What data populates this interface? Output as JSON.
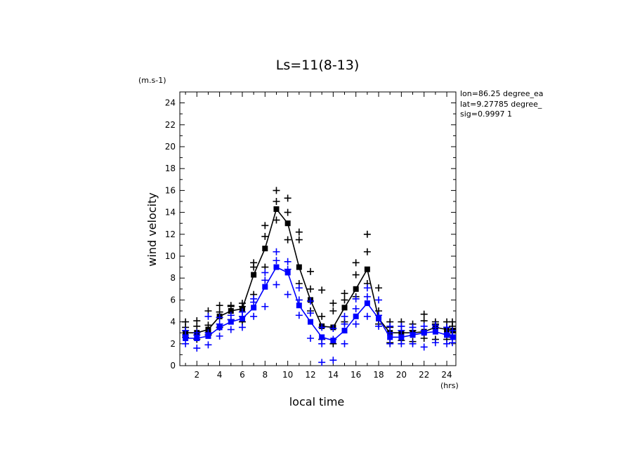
{
  "chart_data": {
    "type": "line",
    "title": "Ls=11(8-13)",
    "xlabel": "local time",
    "ylabel": "wind velocity",
    "y_unit": "(m.s-1)",
    "x_unit": "(hrs)",
    "annotations": [
      "lon=86.25 degree_ea",
      "lat=9.27785 degree_",
      "sig=0.9997 1"
    ],
    "xlim": [
      0.5,
      24.8
    ],
    "ylim": [
      0,
      25
    ],
    "x_ticks": [
      2,
      4,
      6,
      8,
      10,
      12,
      14,
      16,
      18,
      20,
      22,
      24
    ],
    "y_ticks": [
      0,
      2,
      4,
      6,
      8,
      10,
      12,
      14,
      16,
      18,
      20,
      22,
      24
    ],
    "grid": false,
    "x": [
      1,
      2,
      3,
      4,
      5,
      6,
      7,
      8,
      9,
      10,
      11,
      12,
      13,
      14,
      15,
      16,
      17,
      18,
      19,
      20,
      21,
      22,
      23,
      24,
      25
    ],
    "series": [
      {
        "color": "#000000",
        "mean": [
          3.0,
          3.0,
          3.3,
          4.5,
          5.0,
          5.2,
          8.3,
          10.7,
          14.3,
          13.0,
          9.0,
          6.0,
          3.6,
          3.5,
          5.3,
          7.0,
          8.8,
          4.3,
          3.0,
          3.0,
          3.0,
          3.1,
          3.5,
          3.3,
          3.2
        ],
        "samples": [
          [
            2.6,
            3.5,
            4.0
          ],
          [
            2.4,
            3.6,
            4.1
          ],
          [
            2.8,
            3.7,
            5.0
          ],
          [
            3.5,
            4.9,
            5.5
          ],
          [
            4.2,
            5.4,
            5.5
          ],
          [
            4.0,
            5.4,
            5.7
          ],
          [
            6.5,
            9.0,
            9.4
          ],
          [
            9.0,
            11.8,
            12.8
          ],
          [
            13.3,
            15.0,
            16.0
          ],
          [
            11.5,
            14.0,
            15.3
          ],
          [
            7.5,
            11.5,
            12.2
          ],
          [
            5.0,
            7.0,
            8.6
          ],
          [
            2.4,
            4.5,
            6.9
          ],
          [
            2.0,
            5.0,
            5.7
          ],
          [
            4.0,
            6.0,
            6.6
          ],
          [
            6.3,
            8.3,
            9.4
          ],
          [
            7.5,
            10.4,
            12.0
          ],
          [
            3.8,
            5.0,
            7.1
          ],
          [
            2.1,
            3.5,
            4.0
          ],
          [
            2.3,
            3.6,
            4.0
          ],
          [
            2.2,
            3.2,
            3.8
          ],
          [
            2.5,
            4.1,
            4.7
          ],
          [
            2.4,
            3.8,
            4.0
          ],
          [
            2.4,
            3.5,
            4.0
          ],
          [
            2.6,
            3.6,
            4.0
          ]
        ]
      },
      {
        "color": "#0000ff",
        "mean": [
          2.5,
          2.5,
          2.7,
          3.5,
          4.0,
          4.3,
          5.3,
          7.2,
          9.0,
          8.5,
          5.5,
          4.0,
          2.6,
          2.3,
          3.2,
          4.5,
          5.7,
          4.3,
          2.6,
          2.6,
          2.8,
          3.0,
          3.1,
          2.8,
          2.6
        ],
        "samples": [
          [
            2.0,
            2.8,
            3.2
          ],
          [
            1.6,
            2.8,
            3.0
          ],
          [
            1.9,
            3.0,
            4.5
          ],
          [
            2.7,
            3.8,
            4.4
          ],
          [
            3.3,
            4.2,
            4.6
          ],
          [
            3.5,
            4.5,
            4.9
          ],
          [
            4.5,
            5.8,
            6.1
          ],
          [
            5.4,
            7.8,
            8.5
          ],
          [
            7.4,
            9.6,
            10.4
          ],
          [
            6.5,
            8.8,
            9.5
          ],
          [
            4.6,
            6.0,
            7.1
          ],
          [
            2.5,
            4.8,
            5.9
          ],
          [
            0.3,
            2.0,
            3.5
          ],
          [
            0.5,
            2.4,
            3.4
          ],
          [
            2.0,
            3.8,
            4.5
          ],
          [
            3.8,
            5.2,
            6.1
          ],
          [
            4.5,
            6.3,
            7.1
          ],
          [
            3.6,
            4.6,
            6.0
          ],
          [
            2.0,
            3.0,
            3.6
          ],
          [
            2.0,
            3.2,
            3.6
          ],
          [
            2.0,
            3.0,
            3.5
          ],
          [
            1.7,
            3.2,
            3.6
          ],
          [
            2.1,
            3.5,
            3.7
          ],
          [
            2.0,
            2.9,
            3.5
          ],
          [
            2.1,
            2.8,
            3.2
          ]
        ]
      }
    ]
  }
}
